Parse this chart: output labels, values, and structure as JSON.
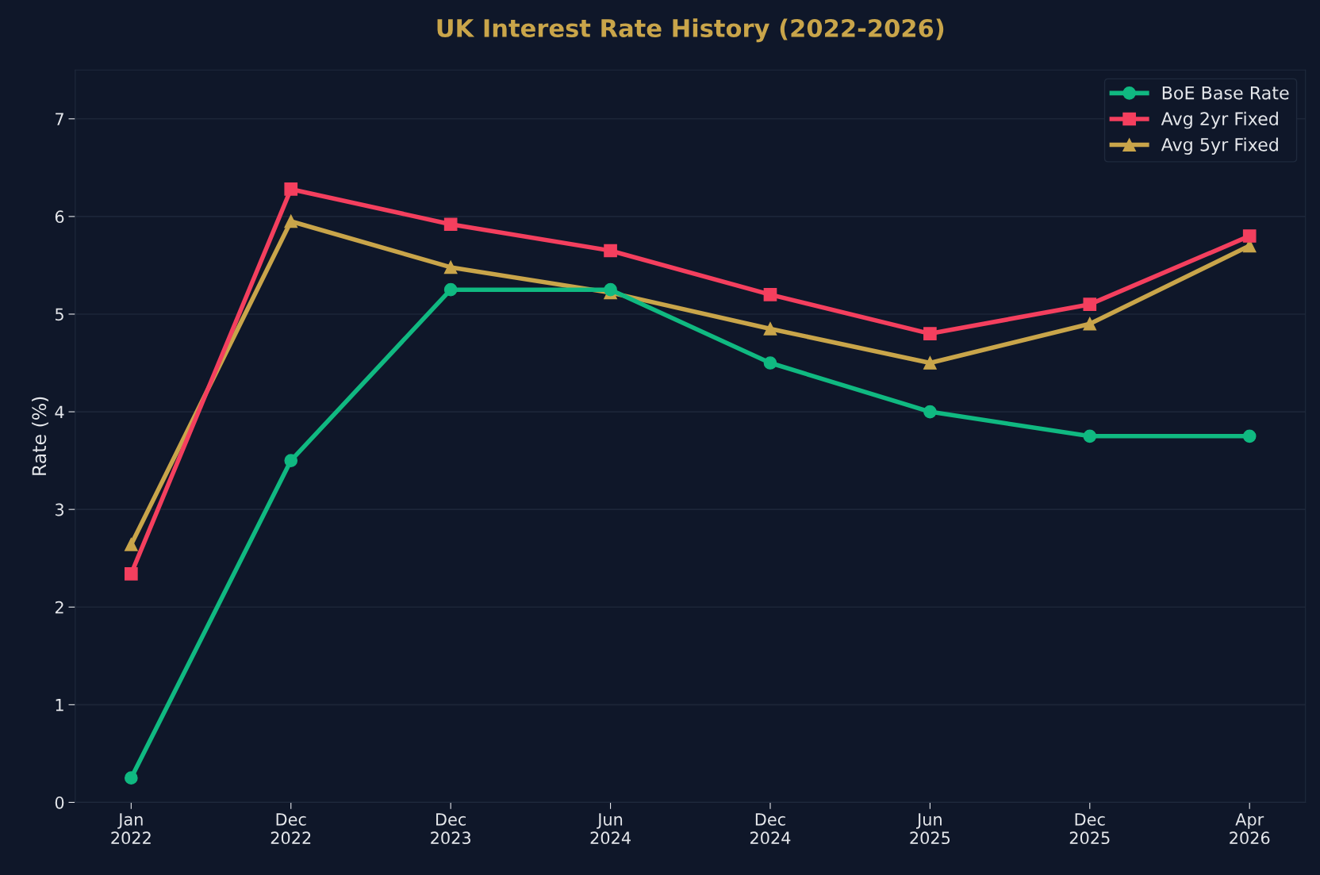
{
  "chart_data": {
    "type": "line",
    "title": "UK Interest Rate History (2022-2026)",
    "ylabel": "Rate (%)",
    "categories": [
      "Jan\n2022",
      "Dec\n2022",
      "Dec\n2023",
      "Jun\n2024",
      "Dec\n2024",
      "Jun\n2025",
      "Dec\n2025",
      "Apr\n2026"
    ],
    "series": [
      {
        "name": "BoE Base Rate",
        "color": "#10b981",
        "marker": "circle",
        "values": [
          0.25,
          3.5,
          5.25,
          5.25,
          4.5,
          4.0,
          3.75,
          3.75
        ]
      },
      {
        "name": "Avg 2yr Fixed",
        "color": "#f43f5e",
        "marker": "square",
        "values": [
          2.34,
          6.28,
          5.92,
          5.65,
          5.2,
          4.8,
          5.1,
          5.8
        ]
      },
      {
        "name": "Avg 5yr Fixed",
        "color": "#c9a54a",
        "marker": "triangle",
        "values": [
          2.64,
          5.95,
          5.48,
          5.22,
          4.85,
          4.5,
          4.9,
          5.7
        ]
      }
    ],
    "ylim": [
      0,
      7.5
    ],
    "yticks": [
      0,
      1,
      2,
      3,
      4,
      5,
      6,
      7
    ],
    "grid": "y",
    "legend": "top right",
    "line_style": "solid"
  }
}
